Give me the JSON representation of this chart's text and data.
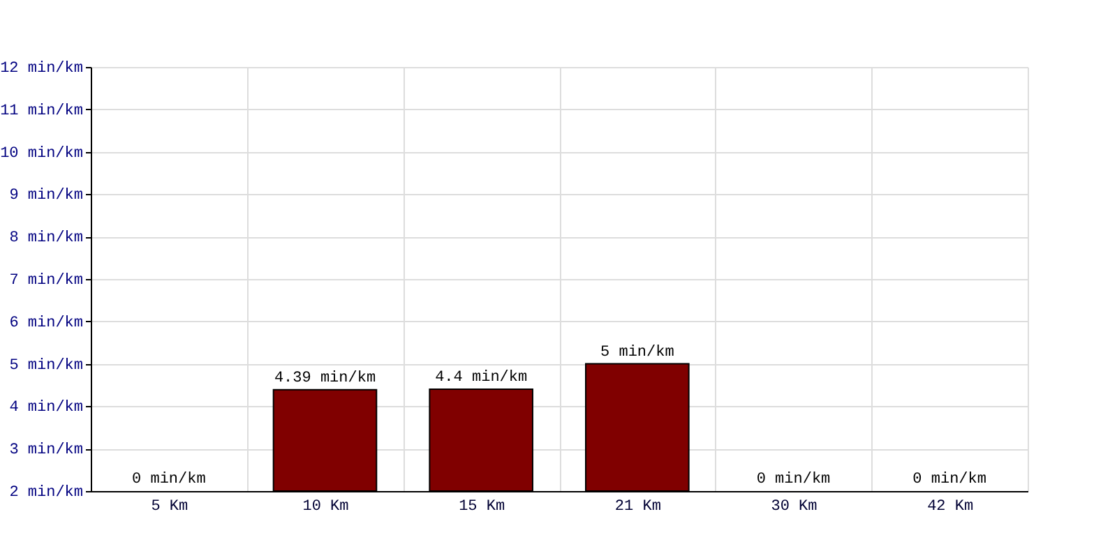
{
  "chart_data": {
    "type": "bar",
    "categories": [
      "5 Km",
      "10 Km",
      "15 Km",
      "21 Km",
      "30 Km",
      "42 Km"
    ],
    "values": [
      null,
      4.39,
      4.4,
      5,
      null,
      null
    ],
    "value_labels": [
      "0 min/km",
      "4.39 min/km",
      "4.4 min/km",
      "5 min/km",
      "0 min/km",
      "0 min/km"
    ],
    "color": "#800000",
    "ylim": [
      2,
      12
    ],
    "yticks": [
      {
        "value": 2,
        "label": "2 min/km"
      },
      {
        "value": 3,
        "label": "3 min/km"
      },
      {
        "value": 4,
        "label": "4 min/km"
      },
      {
        "value": 5,
        "label": "5 min/km"
      },
      {
        "value": 6,
        "label": "6 min/km"
      },
      {
        "value": 7,
        "label": "7 min/km"
      },
      {
        "value": 8,
        "label": "8 min/km"
      },
      {
        "value": 9,
        "label": "9 min/km"
      },
      {
        "value": 10,
        "label": "10 min/km"
      },
      {
        "value": 11,
        "label": "11 min/km"
      },
      {
        "value": 12,
        "label": "12 min/km"
      }
    ],
    "grid": true
  }
}
